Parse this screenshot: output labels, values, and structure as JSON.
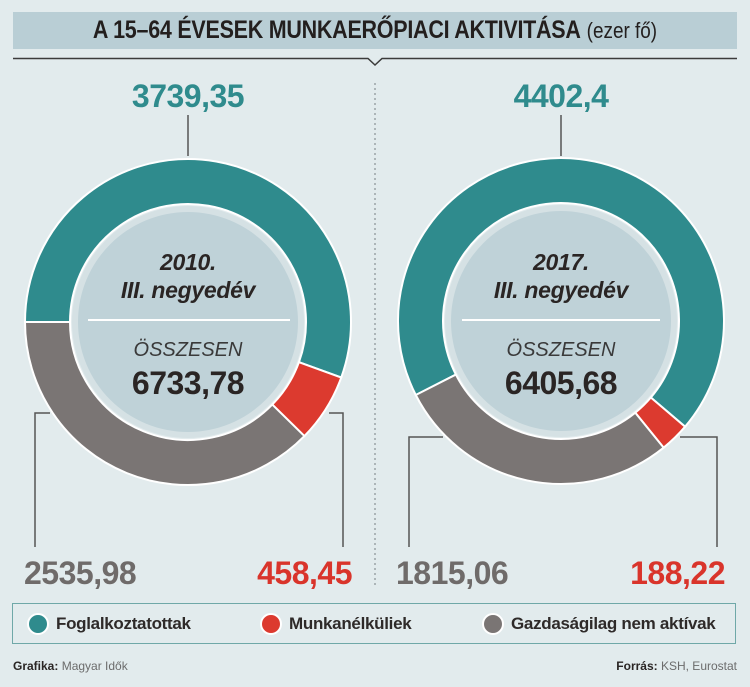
{
  "header": {
    "title": "A 15–64 ÉVESEK MUNKAERŐPIACI AKTIVITÁSA",
    "unit": "(ezer fő)"
  },
  "colors": {
    "background": "#e2ebed",
    "title_bar": "#b9ced5",
    "employed": "#2f8b8d",
    "unemployed": "#dc3a2f",
    "inactive": "#7a7574",
    "inner_disk": "#bfd2d8",
    "inner_band": "#d5e1e4"
  },
  "legend": {
    "items": [
      {
        "label": "Foglalkoztatottak",
        "color": "#2f8b8d"
      },
      {
        "label": "Munkanélküliek",
        "color": "#dc3a2f"
      },
      {
        "label": "Gazdaságilag nem aktívak",
        "color": "#7a7574"
      }
    ]
  },
  "chart_data": [
    {
      "type": "pie",
      "style": "donut",
      "title": "A 15–64 ÉVESEK MUNKAERŐPIACI AKTIVITÁSA (ezer fő)",
      "period_year": "2010.",
      "period_quarter": "III. negyedév",
      "total_label": "ÖSSZESEN",
      "total": 6733.78,
      "total_display": "6733,78",
      "categories": [
        "Foglalkoztatottak",
        "Munkanélküliek",
        "Gazdaságilag nem aktívak"
      ],
      "values": [
        3739.35,
        458.45,
        2535.98
      ],
      "value_labels": [
        "3739,35",
        "458,45",
        "2535,98"
      ],
      "colors": [
        "#2f8b8d",
        "#dc3a2f",
        "#7a7574"
      ],
      "start_angle_deg": 270,
      "unit": "ezer fő"
    },
    {
      "type": "pie",
      "style": "donut",
      "title": "A 15–64 ÉVESEK MUNKAERŐPIACI AKTIVITÁSA (ezer fő)",
      "period_year": "2017.",
      "period_quarter": "III. negyedév",
      "total_label": "ÖSSZESEN",
      "total": 6405.68,
      "total_display": "6405,68",
      "categories": [
        "Foglalkoztatottak",
        "Munkanélküliek",
        "Gazdaságilag nem aktívak"
      ],
      "values": [
        4402.4,
        188.22,
        1815.06
      ],
      "value_labels": [
        "4402,4",
        "188,22",
        "1815,06"
      ],
      "colors": [
        "#2f8b8d",
        "#dc3a2f",
        "#7a7574"
      ],
      "start_angle_deg": 243,
      "unit": "ezer fő"
    }
  ],
  "footer": {
    "credit_label": "Grafika:",
    "credit_value": "Magyar Idők",
    "source_label": "Forrás:",
    "source_value": "KSH, Eurostat"
  }
}
